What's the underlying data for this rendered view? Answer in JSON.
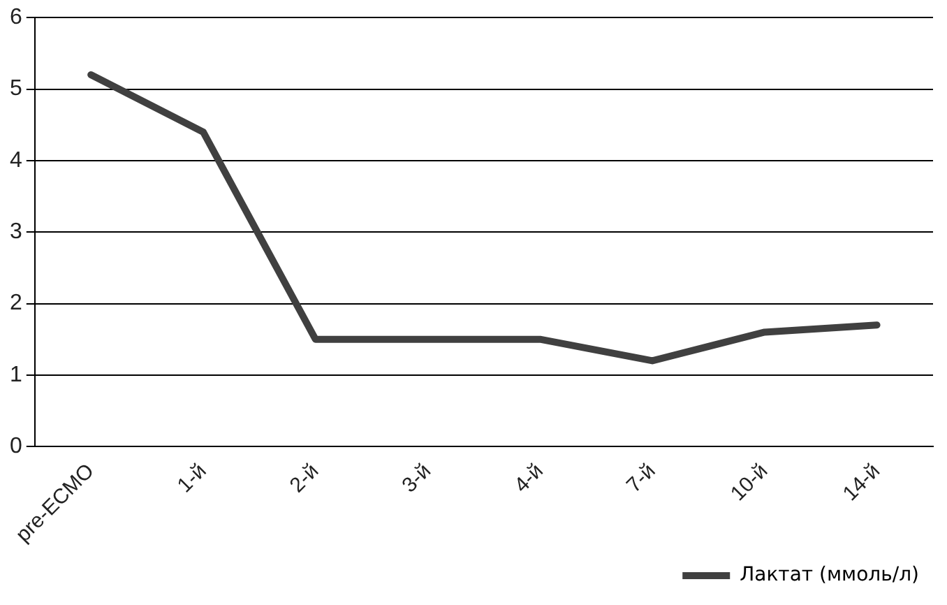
{
  "chart_data": {
    "type": "line",
    "categories": [
      "pre-ECMO",
      "1-й",
      "2-й",
      "3-й",
      "4-й",
      "7-й",
      "10-й",
      "14-й"
    ],
    "series": [
      {
        "name": "Лактат (ммоль/л)",
        "color": "#404040",
        "values": [
          5.2,
          4.4,
          1.5,
          1.5,
          1.5,
          1.2,
          1.6,
          1.7
        ]
      }
    ],
    "ylim": [
      0,
      6
    ],
    "yticks": [
      0,
      1,
      2,
      3,
      4,
      5,
      6
    ],
    "grid": "y",
    "legend": "bottom right",
    "marker": "none",
    "line_style": "solid"
  }
}
